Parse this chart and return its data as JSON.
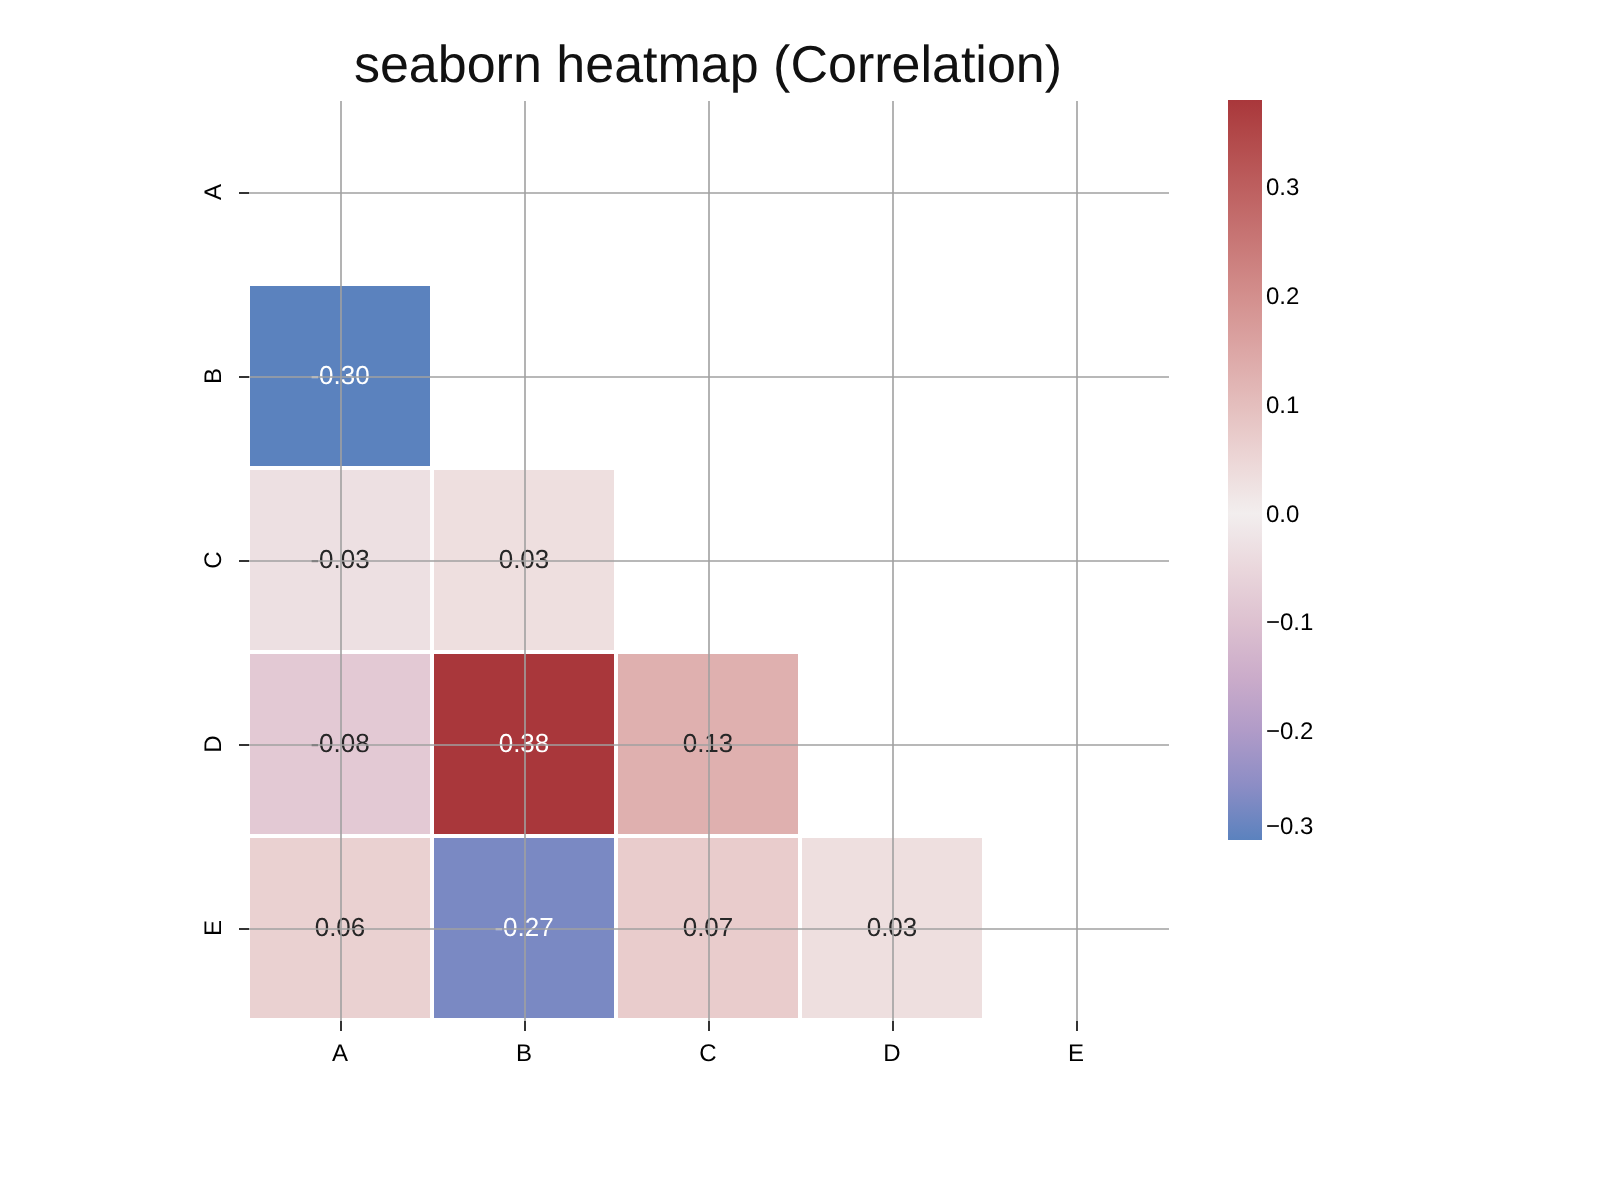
{
  "chart_data": {
    "type": "heatmap",
    "title": "seaborn heatmap (Correlation)",
    "categories": [
      "A",
      "B",
      "C",
      "D",
      "E"
    ],
    "y_categories": [
      "A",
      "B",
      "C",
      "D",
      "E"
    ],
    "cells": [
      [
        null,
        null,
        null,
        null,
        null
      ],
      [
        -0.3,
        null,
        null,
        null,
        null
      ],
      [
        -0.03,
        0.03,
        null,
        null,
        null
      ],
      [
        -0.08,
        0.38,
        0.13,
        null,
        null
      ],
      [
        0.06,
        -0.27,
        0.07,
        0.03,
        null
      ]
    ],
    "cell_labels": [
      [
        null,
        null,
        null,
        null,
        null
      ],
      [
        "-0.30",
        null,
        null,
        null,
        null
      ],
      [
        "-0.03",
        "0.03",
        null,
        null,
        null
      ],
      [
        "-0.08",
        "0.38",
        "0.13",
        null,
        null
      ],
      [
        "0.06",
        "-0.27",
        "0.07",
        "0.03",
        null
      ]
    ],
    "clim": [
      -0.3,
      0.38
    ],
    "cticks": [
      -0.3,
      -0.2,
      -0.1,
      {
        "value": 0,
        "label": "0.0"
      },
      0.1,
      0.2,
      0.3
    ],
    "grid": true
  }
}
